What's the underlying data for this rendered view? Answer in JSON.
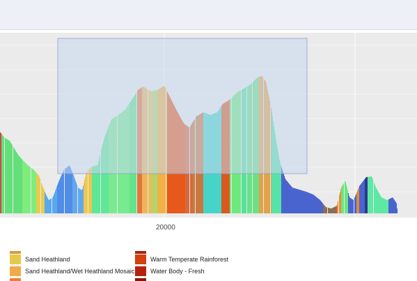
{
  "chart_data": {
    "type": "area",
    "x_tick_labels": [
      "20000"
    ],
    "legend": [
      {
        "label": "Sand Heathland",
        "color": "#e6c94a"
      },
      {
        "label": "Sand Heathland/Wet Heathland Mosaic",
        "color": "#f2a94a"
      },
      {
        "label": "Warm Temperate Rainforest",
        "color": "#d4400e"
      },
      {
        "label": "Water Body - Fresh",
        "color": "#b8200e"
      }
    ],
    "brush_selection": "active"
  }
}
